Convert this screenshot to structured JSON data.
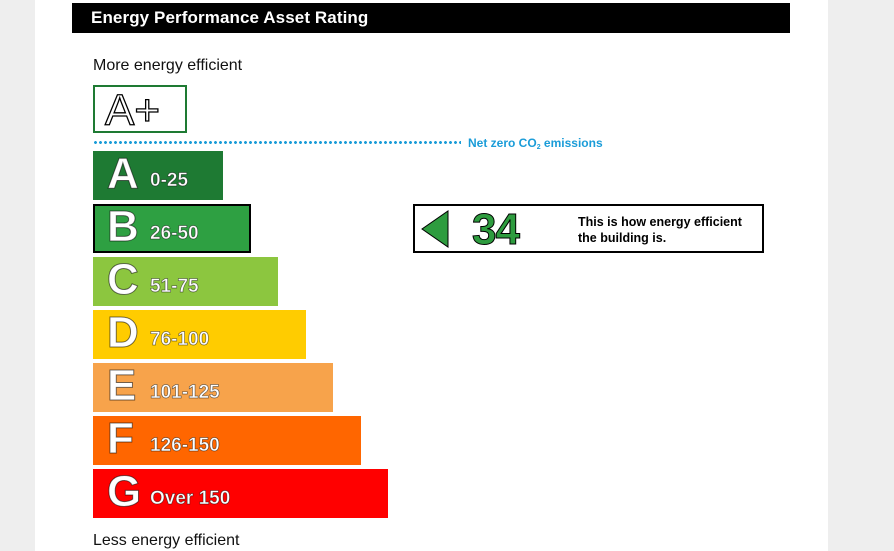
{
  "header": {
    "title": "Energy Performance Asset Rating"
  },
  "scale": {
    "top_label": "More energy efficient",
    "bottom_label": "Less energy efficient"
  },
  "aplus": {
    "label": "A+"
  },
  "net_zero": {
    "text_main": "Net zero CO",
    "text_sub": "2",
    "text_end": " emissions",
    "color": "#1a9cd8"
  },
  "bands": [
    {
      "letter": "A",
      "range": "0-25",
      "color": "#1e7a33"
    },
    {
      "letter": "B",
      "range": "26-50",
      "color": "#2ea042"
    },
    {
      "letter": "C",
      "range": "51-75",
      "color": "#8cc63f"
    },
    {
      "letter": "D",
      "range": "76-100",
      "color": "#ffcc00"
    },
    {
      "letter": "E",
      "range": "101-125",
      "color": "#f7a34b"
    },
    {
      "letter": "F",
      "range": "126-150",
      "color": "#ff6600"
    },
    {
      "letter": "G",
      "range": "Over 150",
      "color": "#ff0000"
    }
  ],
  "rating": {
    "value": "34",
    "band": "B",
    "note": "This is how energy efficient the building is.",
    "color": "#2e9c3f"
  }
}
